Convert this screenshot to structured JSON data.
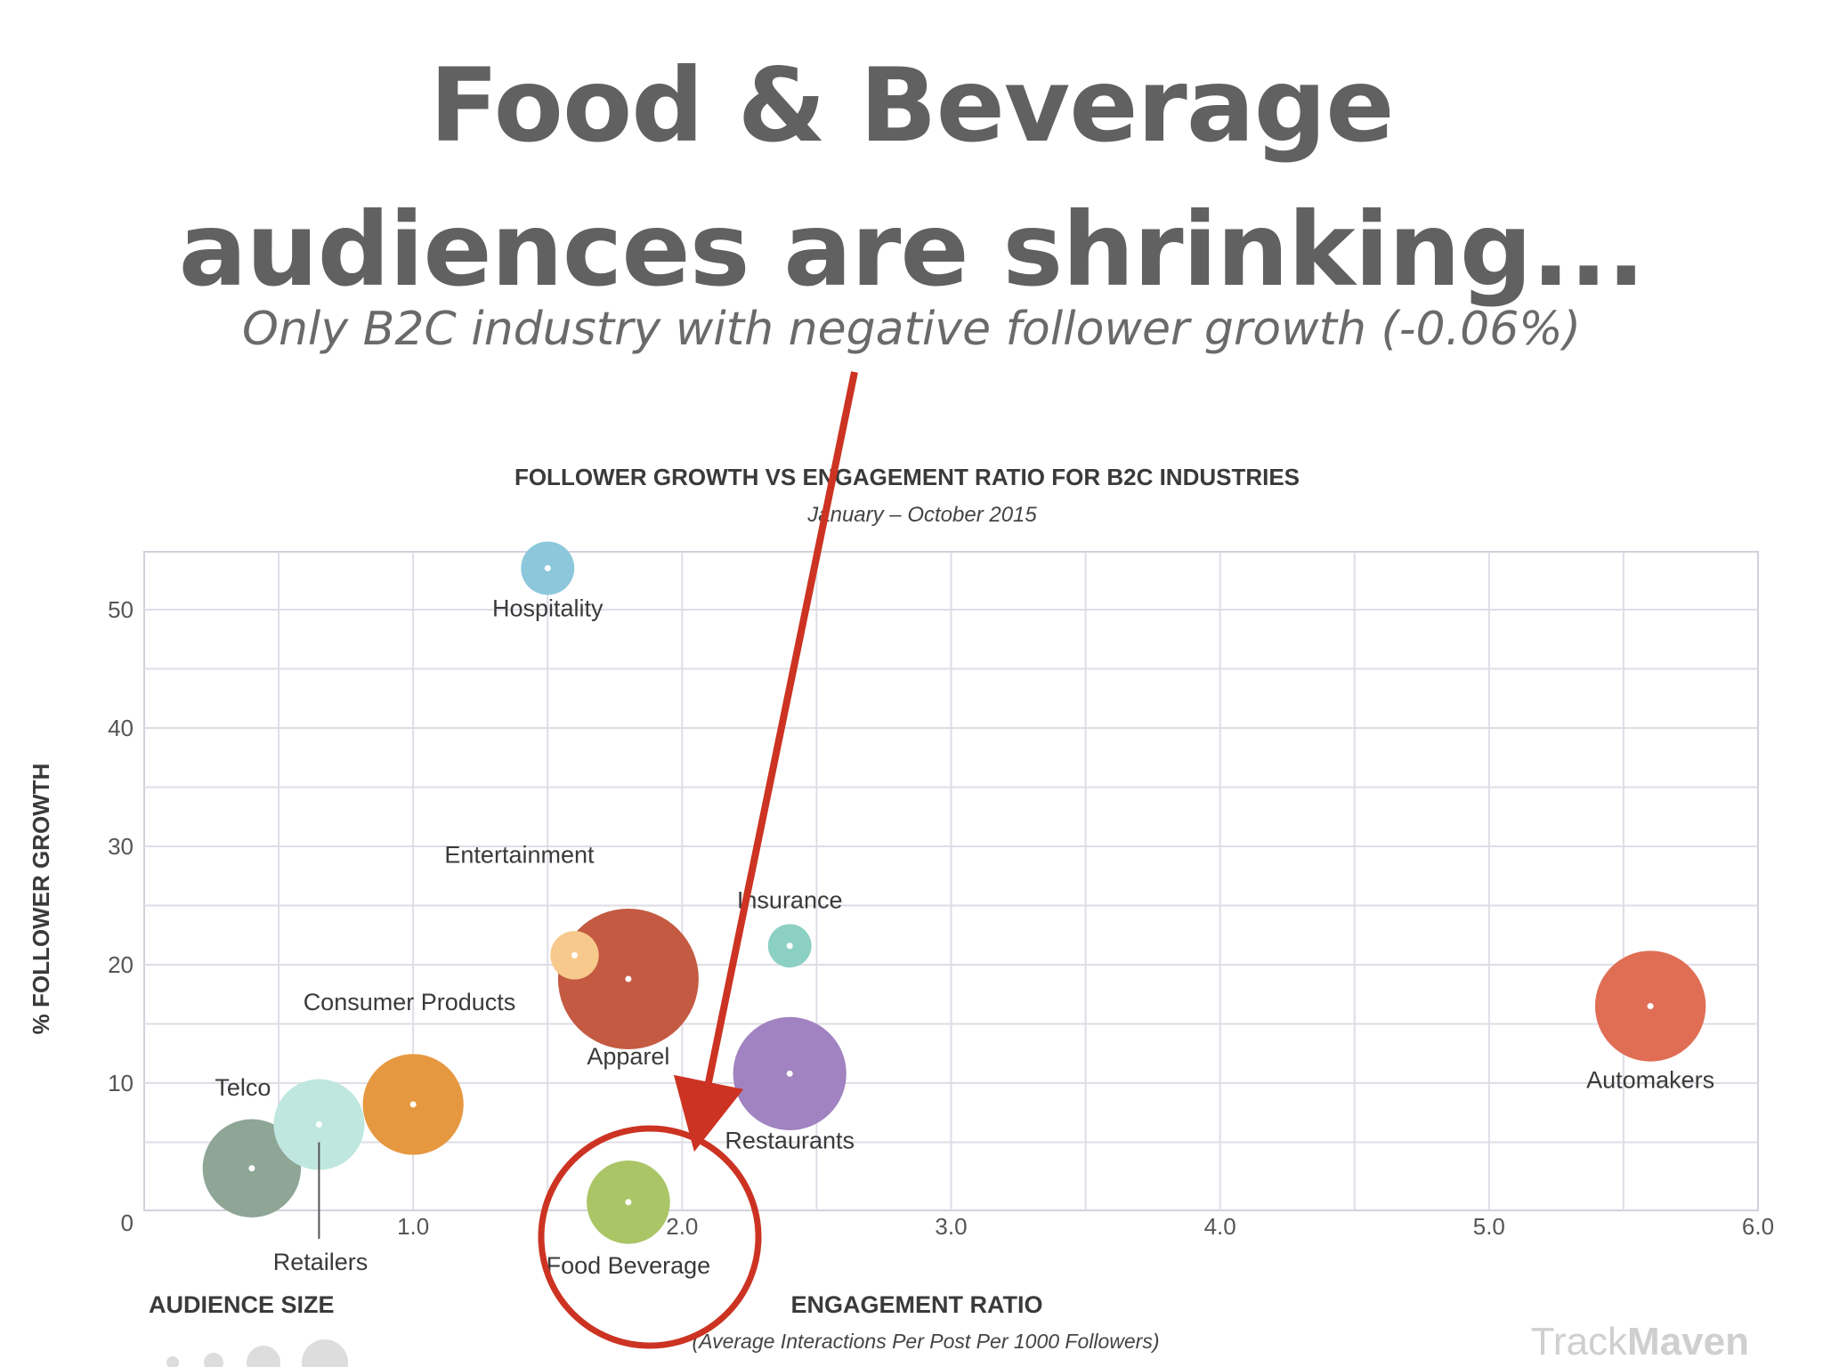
{
  "slide": {
    "headline_line1": "Food & Beverage",
    "headline_line2": "audiences are shrinking...",
    "subheadline": "Only B2C industry with negative follower growth (-0.06%)"
  },
  "chart_data": {
    "type": "scatter",
    "title": "FOLLOWER GROWTH VS ENGAGEMENT RATIO FOR B2C INDUSTRIES",
    "subtitle": "January – October 2015",
    "xlabel": "ENGAGEMENT RATIO",
    "xlabel_sub": "(Average Interactions Per Post Per 1000 Followers)",
    "ylabel": "% FOLLOWER GROWTH",
    "xlim": [
      0,
      6.0
    ],
    "ylim": [
      -1,
      55
    ],
    "grid": true,
    "x_ticks": [
      "1.0",
      "2.0",
      "3.0",
      "4.0",
      "5.0",
      "6.0"
    ],
    "y_ticks": [
      "0",
      "10",
      "20",
      "30",
      "40",
      "50"
    ],
    "series": [
      {
        "label": "Hospitality",
        "x": 1.5,
        "y": 53.5,
        "audience": 1.0,
        "color": "#8cc7dc"
      },
      {
        "label": "Entertainment",
        "x": 1.6,
        "y": 20.8,
        "audience": 0.8,
        "color": "#f7c98c"
      },
      {
        "label": "Apparel",
        "x": 1.8,
        "y": 18.8,
        "audience": 4.5,
        "color": "#c45a42"
      },
      {
        "label": "Insurance",
        "x": 2.4,
        "y": 21.6,
        "audience": 0.6,
        "color": "#8cd0c4"
      },
      {
        "label": "Restaurants",
        "x": 2.4,
        "y": 10.8,
        "audience": 3.4,
        "color": "#a083c0"
      },
      {
        "label": "Automakers",
        "x": 5.6,
        "y": 16.5,
        "audience": 3.3,
        "color": "#df6e55"
      },
      {
        "label": "Consumer Products",
        "x": 1.0,
        "y": 8.2,
        "audience": 2.9,
        "color": "#e69840"
      },
      {
        "label": "Retailers",
        "x": 0.65,
        "y": 6.5,
        "audience": 2.5,
        "color": "#bfe7e0"
      },
      {
        "label": "Telco",
        "x": 0.4,
        "y": 2.8,
        "audience": 2.8,
        "color": "#8fa596"
      },
      {
        "label": "Food Beverage",
        "x": 1.8,
        "y": -0.06,
        "audience": 2.2,
        "color": "#aac566"
      }
    ],
    "legend": {
      "title": "AUDIENCE SIZE",
      "placement": "bottom-left"
    },
    "watermark": {
      "part1": "Track",
      "part2": "Maven"
    }
  },
  "colors": {
    "headline": "#616161",
    "annotation": "#cc3322",
    "grid": "#dedde6"
  }
}
